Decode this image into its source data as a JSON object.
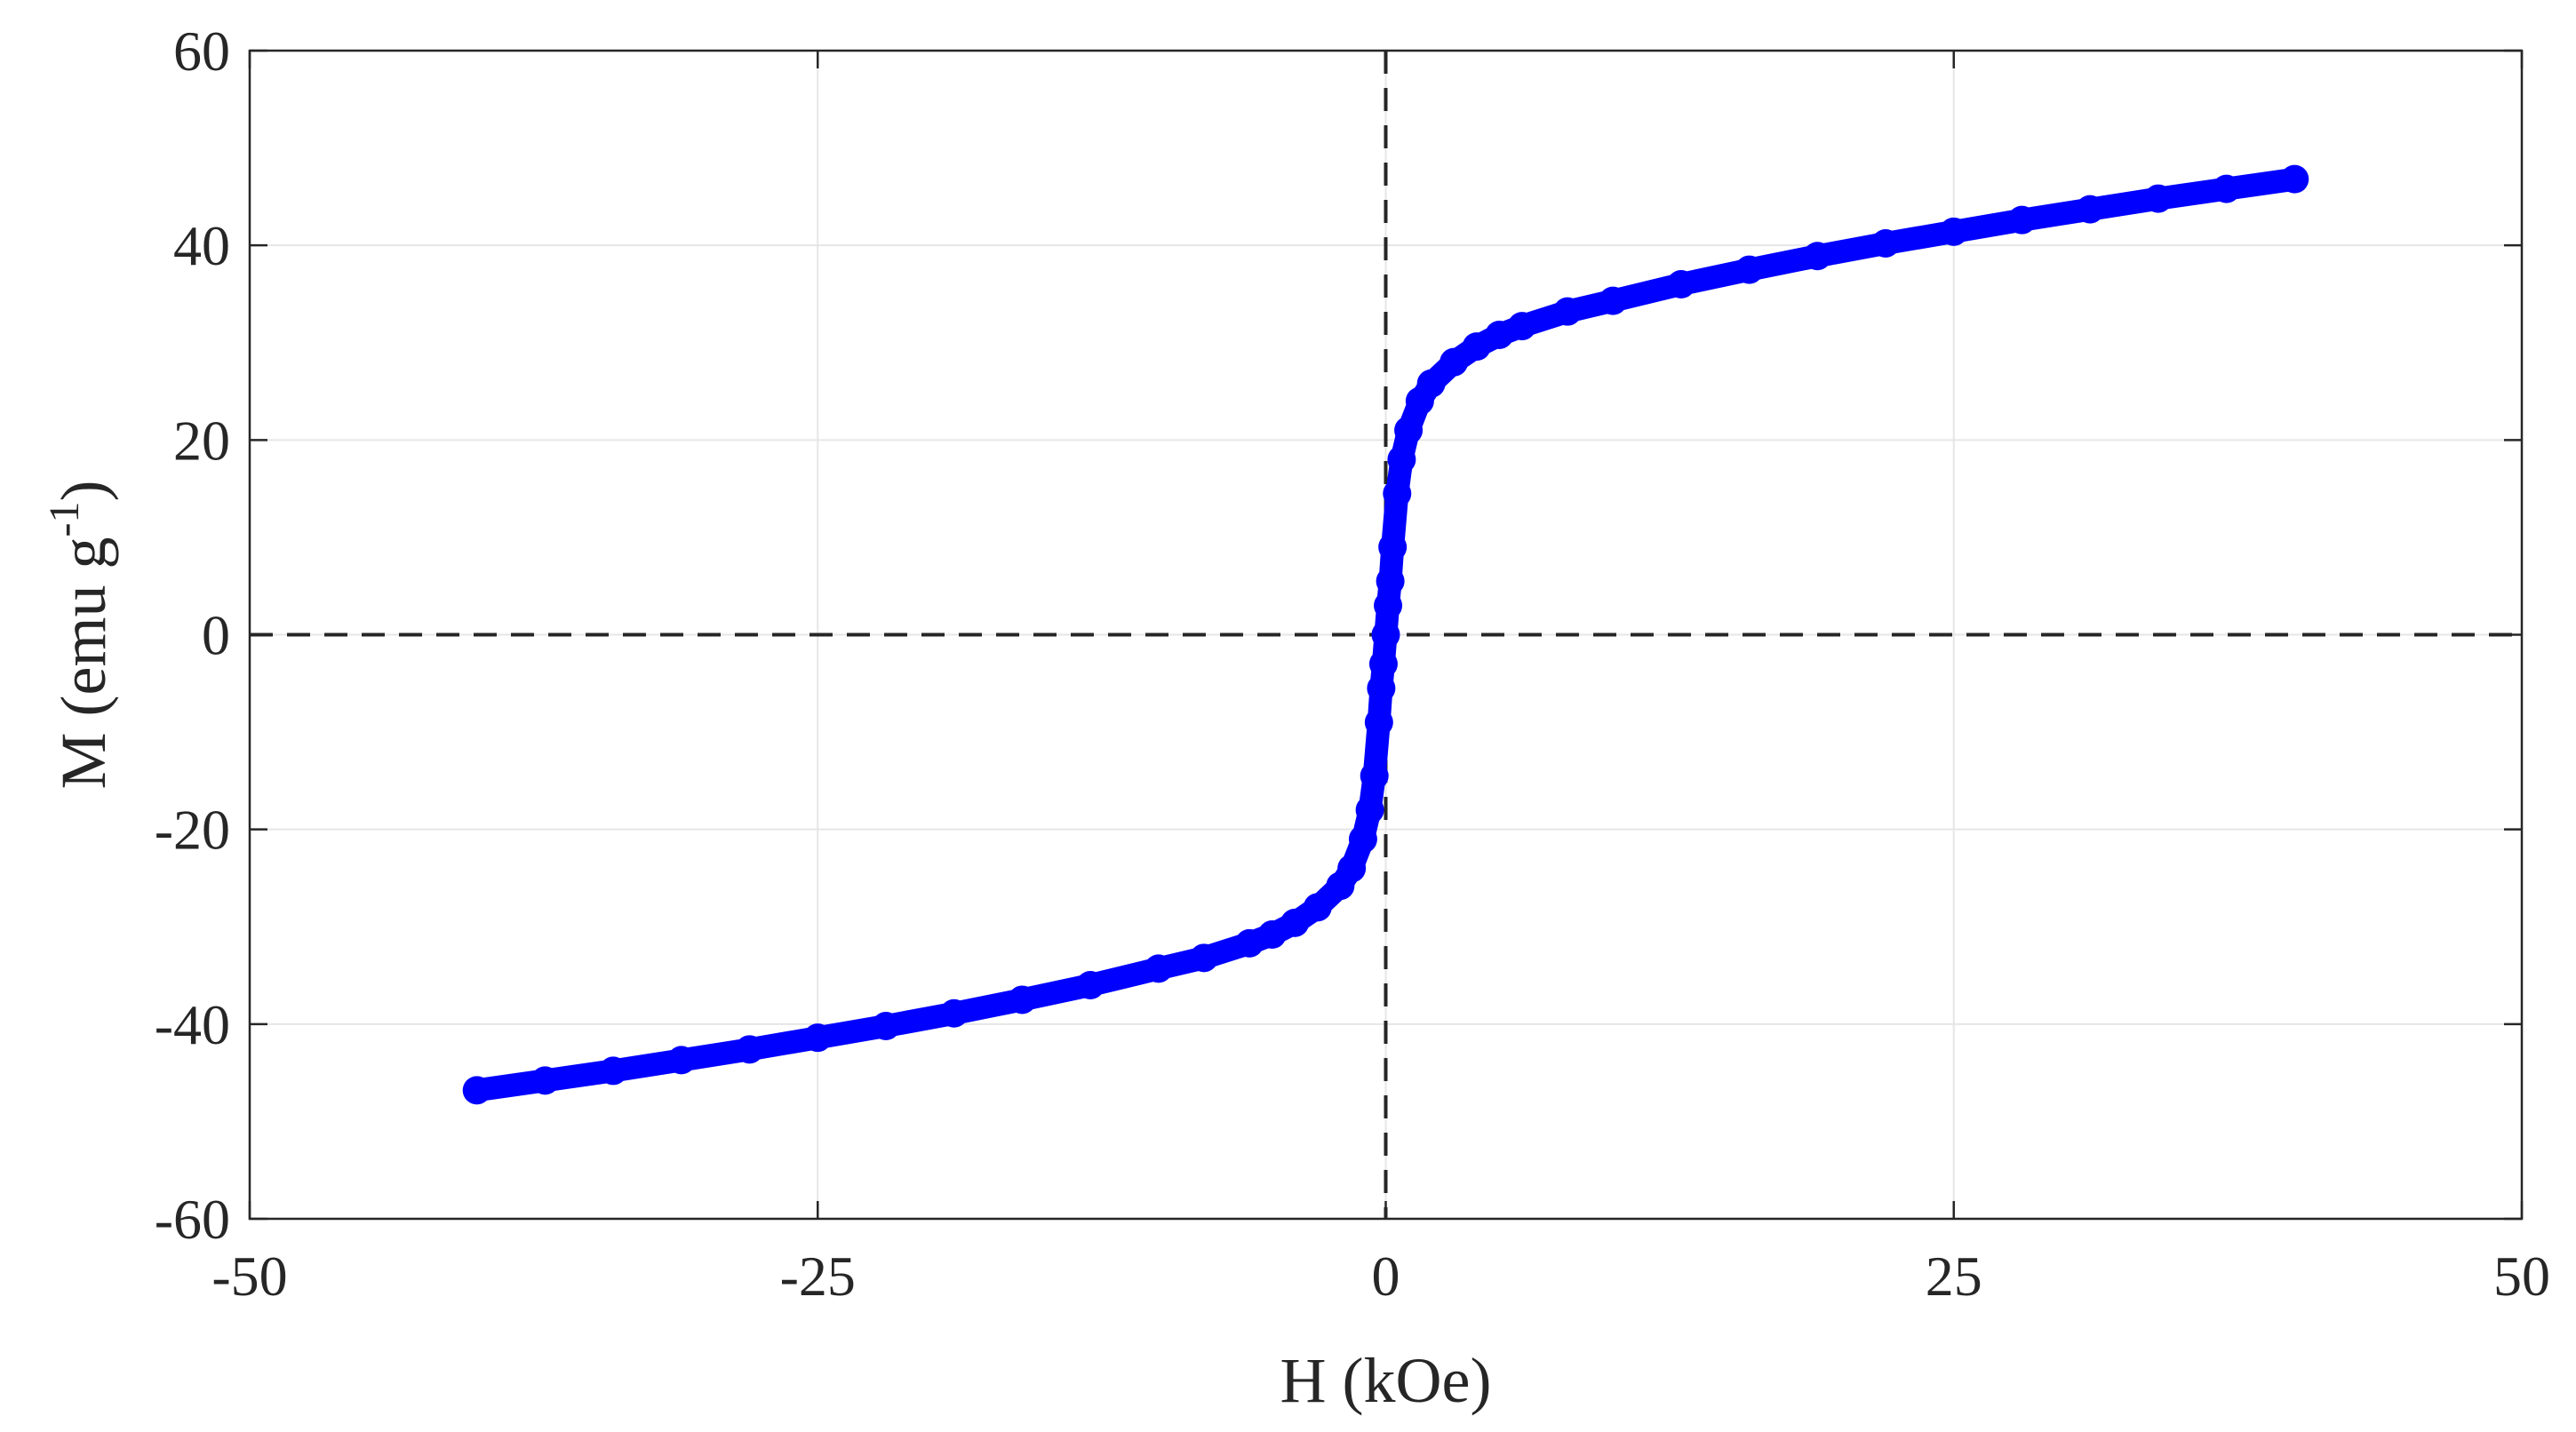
{
  "chart_data": {
    "type": "scatter",
    "title": "",
    "xlabel": "H (kOe)",
    "ylabel_main": "M (emu g",
    "ylabel_sup": "-1",
    "ylabel_close": ")",
    "xlim": [
      -50,
      50
    ],
    "ylim": [
      -60,
      60
    ],
    "x_ticks": [
      -50,
      -25,
      0,
      25,
      50
    ],
    "y_ticks": [
      -60,
      -40,
      -20,
      0,
      20,
      40,
      60
    ],
    "grid": true,
    "zero_lines": "dashed",
    "marker_color": "#0000ff",
    "series": [
      {
        "values_x": [
          -40,
          -37,
          -34,
          -31,
          -28,
          -25,
          -22,
          -19,
          -16,
          -13,
          -10,
          -8,
          -6,
          -5,
          -4,
          -3,
          -2,
          -1.5,
          -1,
          -0.7,
          -0.5,
          -0.3,
          -0.2,
          -0.1,
          0,
          0.1,
          0.2,
          0.3,
          0.5,
          0.7,
          1,
          1.5,
          2,
          3,
          4,
          5,
          6,
          8,
          10,
          13,
          16,
          19,
          22,
          25,
          28,
          31,
          34,
          37,
          40
        ],
        "values_y": [
          -46.8,
          -45.8,
          -44.8,
          -43.7,
          -42.6,
          -41.4,
          -40.2,
          -38.9,
          -37.5,
          -36.0,
          -34.3,
          -33.2,
          -31.7,
          -30.8,
          -29.6,
          -28.0,
          -25.8,
          -24.0,
          -21.0,
          -18.0,
          -14.5,
          -9.0,
          -5.5,
          -3.0,
          0,
          3.0,
          5.5,
          9.0,
          14.5,
          18.0,
          21.0,
          24.0,
          25.8,
          28.0,
          29.6,
          30.8,
          31.7,
          33.2,
          34.3,
          36.0,
          37.5,
          38.9,
          40.2,
          41.4,
          42.6,
          43.7,
          44.8,
          45.8,
          46.8
        ]
      }
    ]
  }
}
